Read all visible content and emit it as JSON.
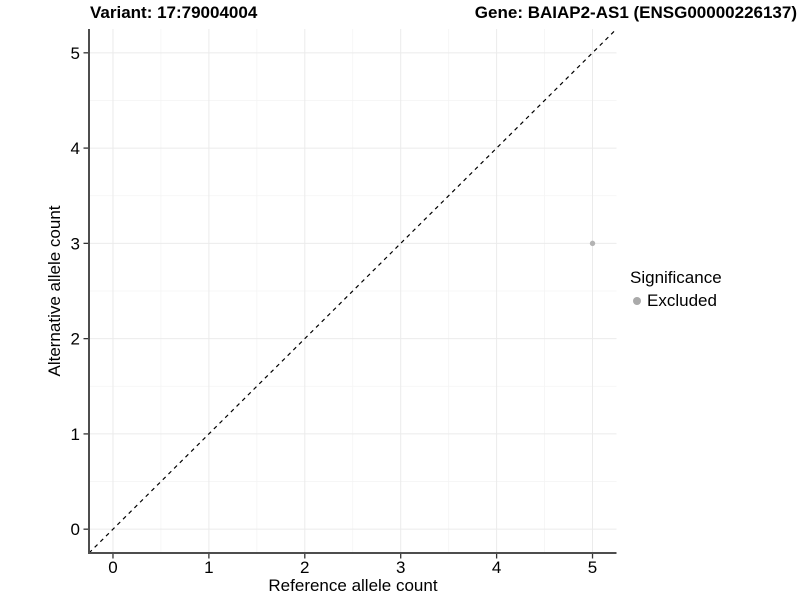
{
  "header": {
    "variant_title": "Variant: 17:79004004",
    "gene_title": "Gene: BAIAP2-AS1 (ENSG00000226137)"
  },
  "chart_data": {
    "type": "scatter",
    "title": "",
    "xlabel": "Reference allele count",
    "ylabel": "Alternative allele count",
    "xlim": [
      -0.25,
      5.25
    ],
    "ylim": [
      -0.25,
      5.25
    ],
    "xticks": [
      0,
      1,
      2,
      3,
      4,
      5
    ],
    "yticks": [
      0,
      1,
      2,
      3,
      4,
      5
    ],
    "minor_gridlines_x": [
      0.5,
      1.5,
      2.5,
      3.5,
      4.5
    ],
    "minor_gridlines_y": [
      0.5,
      1.5,
      2.5,
      3.5,
      4.5
    ],
    "grid": true,
    "series": [
      {
        "name": "Excluded",
        "color": "#b3b3b3",
        "points": [
          {
            "x": 5,
            "y": 3
          }
        ]
      }
    ],
    "identity_line": {
      "slope": 1,
      "intercept": 0,
      "style": "dashed",
      "color": "#000000"
    },
    "legend": {
      "title": "Significance",
      "position": "right",
      "entries": [
        {
          "label": "Excluded",
          "color": "#aaaaaa"
        }
      ]
    },
    "colors": {
      "background": "#ffffff",
      "grid_major": "#ebebeb",
      "grid_minor": "#f4f4f4",
      "axis_line": "#4d4d4d",
      "tick_mark": "#333333",
      "tick_label": "#000000"
    }
  }
}
